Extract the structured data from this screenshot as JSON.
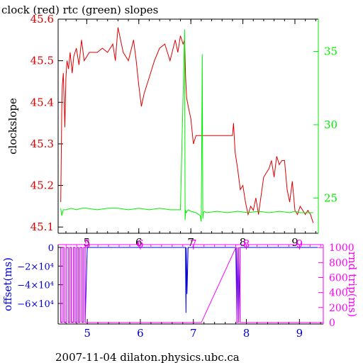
{
  "title": "clock (red) rtc (green) slopes",
  "footer": "2007-11-04 dilaton.physics.ubc.ca",
  "colors": {
    "clock": "#dd0000",
    "rtc": "#00ee00",
    "offset": "#0000dd",
    "rnd_trip": "#ff00ff",
    "axis": "#000000"
  },
  "chart_data": [
    {
      "type": "line",
      "title": "clock (red) rtc (green) slopes",
      "ylabel": "clockslope",
      "xlim": [
        4.45,
        9.45
      ],
      "ylim": [
        45.085,
        45.6
      ],
      "y2lim": [
        22.6,
        37.2
      ],
      "x_ticks": [
        "5",
        "6",
        "7",
        "8",
        "9"
      ],
      "x_tick_values": [
        5,
        6,
        7,
        8,
        9
      ],
      "y_ticks": [
        "45.1",
        "45.2",
        "45.3",
        "45.4",
        "45.5",
        "45.6"
      ],
      "y_tick_values": [
        45.1,
        45.2,
        45.3,
        45.4,
        45.5,
        45.6
      ],
      "y2_ticks": [
        "25",
        "30",
        "35"
      ],
      "y2_tick_values": [
        25,
        30,
        35
      ],
      "grid": false,
      "series": [
        {
          "name": "clock",
          "axis": "left",
          "x": [
            4.5,
            4.52,
            4.53,
            4.55,
            4.58,
            4.6,
            4.62,
            4.65,
            4.68,
            4.72,
            4.75,
            4.8,
            4.85,
            4.9,
            4.95,
            5.0,
            5.05,
            5.1,
            5.2,
            5.3,
            5.4,
            5.5,
            5.55,
            5.6,
            5.7,
            5.8,
            5.9,
            5.95,
            6.0,
            6.05,
            6.1,
            6.2,
            6.3,
            6.4,
            6.5,
            6.6,
            6.7,
            6.75,
            6.8,
            6.85,
            6.88,
            6.9,
            6.92,
            6.95,
            7.0,
            7.05,
            7.1,
            7.15,
            7.2,
            7.3,
            7.4,
            7.5,
            7.6,
            7.7,
            7.8,
            7.82,
            7.85,
            7.9,
            7.95,
            8.0,
            8.05,
            8.1,
            8.15,
            8.2,
            8.25,
            8.3,
            8.4,
            8.5,
            8.55,
            8.6,
            8.65,
            8.7,
            8.75,
            8.8,
            8.85,
            8.9,
            8.95,
            9.0,
            9.05,
            9.1,
            9.15,
            9.2,
            9.25,
            9.3,
            9.35
          ],
          "y": [
            45.16,
            45.38,
            45.44,
            45.47,
            45.34,
            45.46,
            45.5,
            45.48,
            45.52,
            45.47,
            45.51,
            45.53,
            45.49,
            45.55,
            45.5,
            45.51,
            45.52,
            45.52,
            45.52,
            45.53,
            45.52,
            45.54,
            45.5,
            45.58,
            45.52,
            45.5,
            45.55,
            45.5,
            45.44,
            45.39,
            45.42,
            45.46,
            45.5,
            45.53,
            45.54,
            45.5,
            45.55,
            45.52,
            45.56,
            45.54,
            45.55,
            45.46,
            45.41,
            45.39,
            45.36,
            45.3,
            45.32,
            45.32,
            45.32,
            45.32,
            45.32,
            45.32,
            45.32,
            45.32,
            45.32,
            45.35,
            45.28,
            45.24,
            45.19,
            45.2,
            45.16,
            45.13,
            45.15,
            45.14,
            45.17,
            45.13,
            45.22,
            45.24,
            45.26,
            45.22,
            45.27,
            45.25,
            45.26,
            45.26,
            45.19,
            45.16,
            45.21,
            45.14,
            45.13,
            45.15,
            45.14,
            45.13,
            45.14,
            45.13,
            45.11
          ]
        },
        {
          "name": "rtc",
          "axis": "right",
          "x": [
            4.5,
            4.52,
            4.55,
            4.6,
            4.7,
            4.8,
            4.9,
            5.0,
            5.2,
            5.4,
            5.6,
            5.8,
            6.0,
            6.2,
            6.4,
            6.6,
            6.8,
            6.88,
            6.89,
            6.9,
            6.91,
            6.95,
            7.0,
            7.1,
            7.18,
            7.2,
            7.22,
            7.23,
            7.24,
            7.26,
            7.3,
            7.5,
            7.7,
            7.9,
            8.1,
            8.3,
            8.5,
            8.7,
            8.9,
            9.0,
            9.1,
            9.2,
            9.3,
            9.35
          ],
          "y": [
            24.3,
            23.8,
            24.2,
            24.2,
            24.3,
            24.2,
            24.3,
            24.3,
            24.2,
            24.3,
            24.3,
            24.2,
            24.3,
            24.2,
            24.3,
            24.2,
            24.2,
            36.5,
            23.5,
            24.2,
            24.0,
            24.2,
            24.1,
            24.0,
            23.8,
            23.4,
            34.8,
            23.6,
            24.0,
            24.1,
            24.0,
            24.1,
            24.0,
            24.1,
            24.0,
            24.1,
            24.0,
            24.1,
            24.0,
            24.1,
            24.0,
            24.0,
            24.0,
            24.0
          ]
        }
      ]
    },
    {
      "type": "line",
      "ylabel": "offset(ms)",
      "y2label": "rnd trip(ms)",
      "xlim": [
        4.45,
        9.45
      ],
      "ylim": [
        -82000,
        3000
      ],
      "y2lim": [
        -20,
        1040
      ],
      "x_ticks": [
        "5",
        "6",
        "7",
        "8",
        "9"
      ],
      "x_tick_values": [
        5,
        6,
        7,
        8,
        9
      ],
      "y_ticks": [
        "0",
        "−2×10⁴",
        "−4×10⁴",
        "−6×10⁴"
      ],
      "y_tick_values": [
        0,
        -20000,
        -40000,
        -60000
      ],
      "y2_ticks": [
        "0",
        "200",
        "400",
        "600",
        "800",
        "1000"
      ],
      "y2_tick_values": [
        0,
        200,
        400,
        600,
        800,
        1000
      ],
      "series": [
        {
          "name": "offset",
          "axis": "left",
          "x": [
            4.5,
            4.5,
            4.53,
            4.53,
            4.56,
            4.56,
            4.6,
            4.6,
            4.64,
            4.64,
            4.67,
            4.67,
            4.7,
            4.7,
            4.74,
            4.74,
            4.77,
            4.77,
            4.8,
            4.8,
            4.83,
            4.83,
            4.86,
            4.86,
            4.9,
            4.9,
            4.93,
            4.93,
            4.96,
            4.96,
            5.0,
            5.05,
            6.85,
            6.86,
            6.87,
            6.88,
            6.9,
            7.7,
            7.8,
            7.82,
            7.82,
            7.85,
            7.85,
            7.88,
            7.88,
            7.9,
            7.95,
            9.35
          ],
          "y": [
            0,
            -80000,
            -80000,
            0,
            0,
            -80000,
            -80000,
            0,
            0,
            -80000,
            -80000,
            0,
            0,
            -80000,
            -80000,
            0,
            0,
            -80000,
            -80000,
            0,
            0,
            -80000,
            -80000,
            0,
            0,
            -80000,
            -80000,
            0,
            0,
            -80000,
            0,
            0,
            0,
            -70000,
            0,
            -50000,
            0,
            0,
            0,
            -80000,
            0,
            -80000,
            0,
            -80000,
            0,
            0,
            0,
            0
          ]
        },
        {
          "name": "rnd trip",
          "axis": "right",
          "x": [
            4.5,
            4.5,
            4.53,
            4.53,
            4.56,
            4.56,
            4.6,
            4.6,
            4.64,
            4.64,
            4.67,
            4.67,
            4.7,
            4.7,
            4.74,
            4.74,
            4.77,
            4.77,
            4.8,
            4.8,
            4.83,
            4.83,
            4.86,
            4.86,
            4.9,
            4.9,
            4.93,
            4.93,
            4.96,
            4.96,
            5.0,
            5.3,
            6.0,
            7.0,
            7.15,
            7.8,
            7.82,
            7.82,
            7.85,
            7.85,
            7.88,
            7.88,
            7.9,
            8.0,
            9.0,
            9.35
          ],
          "y": [
            1000,
            0,
            0,
            1000,
            1000,
            0,
            0,
            1000,
            1000,
            0,
            0,
            1000,
            1000,
            0,
            0,
            1000,
            1000,
            0,
            0,
            1000,
            1000,
            0,
            0,
            1000,
            1000,
            0,
            0,
            1000,
            1000,
            0,
            0,
            0,
            0,
            0,
            0,
            1000,
            1000,
            0,
            0,
            1000,
            1000,
            0,
            0,
            0,
            0,
            0
          ]
        }
      ]
    }
  ]
}
